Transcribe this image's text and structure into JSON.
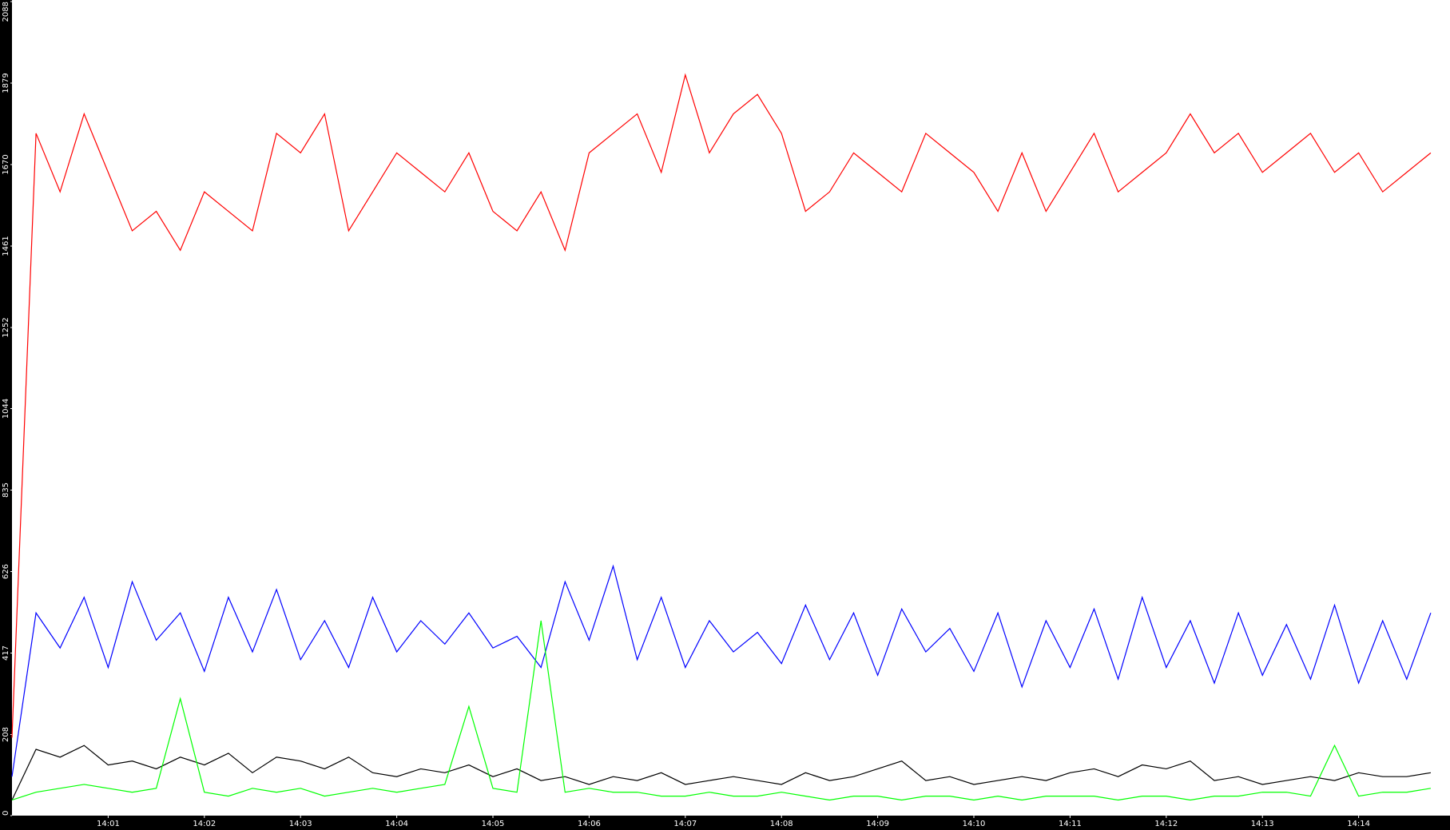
{
  "chart_data": {
    "type": "line",
    "xlim": [
      0,
      14.95
    ],
    "xticks": [
      {
        "value": 1,
        "label": "14:01"
      },
      {
        "value": 2,
        "label": "14:02"
      },
      {
        "value": 3,
        "label": "14:03"
      },
      {
        "value": 4,
        "label": "14:04"
      },
      {
        "value": 5,
        "label": "14:05"
      },
      {
        "value": 6,
        "label": "14:06"
      },
      {
        "value": 7,
        "label": "14:07"
      },
      {
        "value": 8,
        "label": "14:08"
      },
      {
        "value": 9,
        "label": "14:09"
      },
      {
        "value": 10,
        "label": "14:10"
      },
      {
        "value": 11,
        "label": "14:11"
      },
      {
        "value": 12,
        "label": "14:12"
      },
      {
        "value": 13,
        "label": "14:13"
      },
      {
        "value": 14,
        "label": "14:14"
      }
    ],
    "ylim": [
      0,
      2088
    ],
    "yticks": [
      0,
      208,
      417,
      626,
      835,
      1044,
      1252,
      1461,
      1670,
      1879,
      2088
    ],
    "x": [
      0,
      0.25,
      0.5,
      0.75,
      1,
      1.25,
      1.5,
      1.75,
      2,
      2.25,
      2.5,
      2.75,
      3,
      3.25,
      3.5,
      3.75,
      4,
      4.25,
      4.5,
      4.75,
      5,
      5.25,
      5.5,
      5.75,
      6,
      6.25,
      6.5,
      6.75,
      7,
      7.25,
      7.5,
      7.75,
      8,
      8.25,
      8.5,
      8.75,
      9,
      9.25,
      9.5,
      9.75,
      10,
      10.25,
      10.5,
      10.75,
      11,
      11.25,
      11.5,
      11.75,
      12,
      12.25,
      12.5,
      12.75,
      13,
      13.25,
      13.5,
      13.75,
      14,
      14.25,
      14.5,
      14.75
    ],
    "series": [
      {
        "color": "#ff0000",
        "values": [
          200,
          1750,
          1600,
          1800,
          1650,
          1500,
          1550,
          1450,
          1600,
          1550,
          1500,
          1750,
          1700,
          1800,
          1500,
          1600,
          1700,
          1650,
          1600,
          1700,
          1550,
          1500,
          1600,
          1450,
          1700,
          1750,
          1800,
          1650,
          1900,
          1700,
          1800,
          1850,
          1750,
          1550,
          1600,
          1700,
          1650,
          1600,
          1750,
          1700,
          1650,
          1550,
          1700,
          1550,
          1650,
          1750,
          1600,
          1650,
          1700,
          1800,
          1700,
          1750,
          1650,
          1700,
          1750,
          1650,
          1700,
          1600,
          1650,
          1700
        ]
      },
      {
        "color": "#0000ff",
        "values": [
          100,
          520,
          430,
          560,
          380,
          600,
          450,
          520,
          370,
          560,
          420,
          580,
          400,
          500,
          380,
          560,
          420,
          500,
          440,
          520,
          430,
          460,
          380,
          600,
          450,
          640,
          400,
          560,
          380,
          500,
          420,
          470,
          390,
          540,
          400,
          520,
          360,
          530,
          420,
          480,
          370,
          520,
          330,
          500,
          380,
          530,
          350,
          560,
          380,
          500,
          340,
          520,
          360,
          490,
          350,
          540,
          340,
          500,
          350,
          520
        ]
      },
      {
        "color": "#000000",
        "values": [
          40,
          170,
          150,
          180,
          130,
          140,
          120,
          150,
          130,
          160,
          110,
          150,
          140,
          120,
          150,
          110,
          100,
          120,
          110,
          130,
          100,
          120,
          90,
          100,
          80,
          100,
          90,
          110,
          80,
          90,
          100,
          90,
          80,
          110,
          90,
          100,
          120,
          140,
          90,
          100,
          80,
          90,
          100,
          90,
          110,
          120,
          100,
          130,
          120,
          140,
          90,
          100,
          80,
          90,
          100,
          90,
          110,
          100,
          100,
          110
        ]
      },
      {
        "color": "#00ff00",
        "values": [
          40,
          60,
          70,
          80,
          70,
          60,
          70,
          300,
          60,
          50,
          70,
          60,
          70,
          50,
          60,
          70,
          60,
          70,
          80,
          280,
          70,
          60,
          500,
          60,
          70,
          60,
          60,
          50,
          50,
          60,
          50,
          50,
          60,
          50,
          40,
          50,
          50,
          40,
          50,
          50,
          40,
          50,
          40,
          50,
          50,
          50,
          40,
          50,
          50,
          40,
          50,
          50,
          60,
          60,
          50,
          180,
          50,
          60,
          60,
          70
        ]
      }
    ]
  }
}
